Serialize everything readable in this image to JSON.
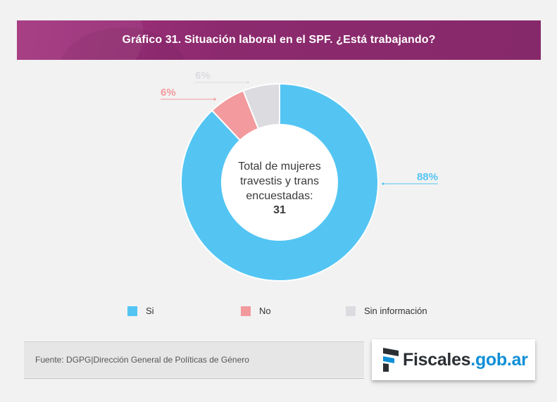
{
  "title": "Gráfico 31. Situación laboral en el SPF. ¿Está trabajando?",
  "chart_data": {
    "type": "pie",
    "variant": "donut",
    "title": "Gráfico 31. Situación laboral en el SPF. ¿Está trabajando?",
    "categories": [
      "Si",
      "No",
      "Sin información"
    ],
    "values": [
      88,
      6,
      6
    ],
    "unit": "%",
    "value_labels": [
      "88%",
      "6%",
      "6%"
    ],
    "colors": [
      "#54c5f3",
      "#f29a9d",
      "#dcdce0"
    ],
    "center_text": {
      "line1": "Total de mujeres",
      "line2": "travestis y trans",
      "line3": "encuestadas:",
      "total": "31"
    },
    "legend": [
      "Si",
      "No",
      "Sin información"
    ]
  },
  "source": "Fuente: DGPG|Dirección General de Políticas de Género",
  "logo": {
    "part1": "Fiscales",
    "part2": ".gob.ar"
  }
}
